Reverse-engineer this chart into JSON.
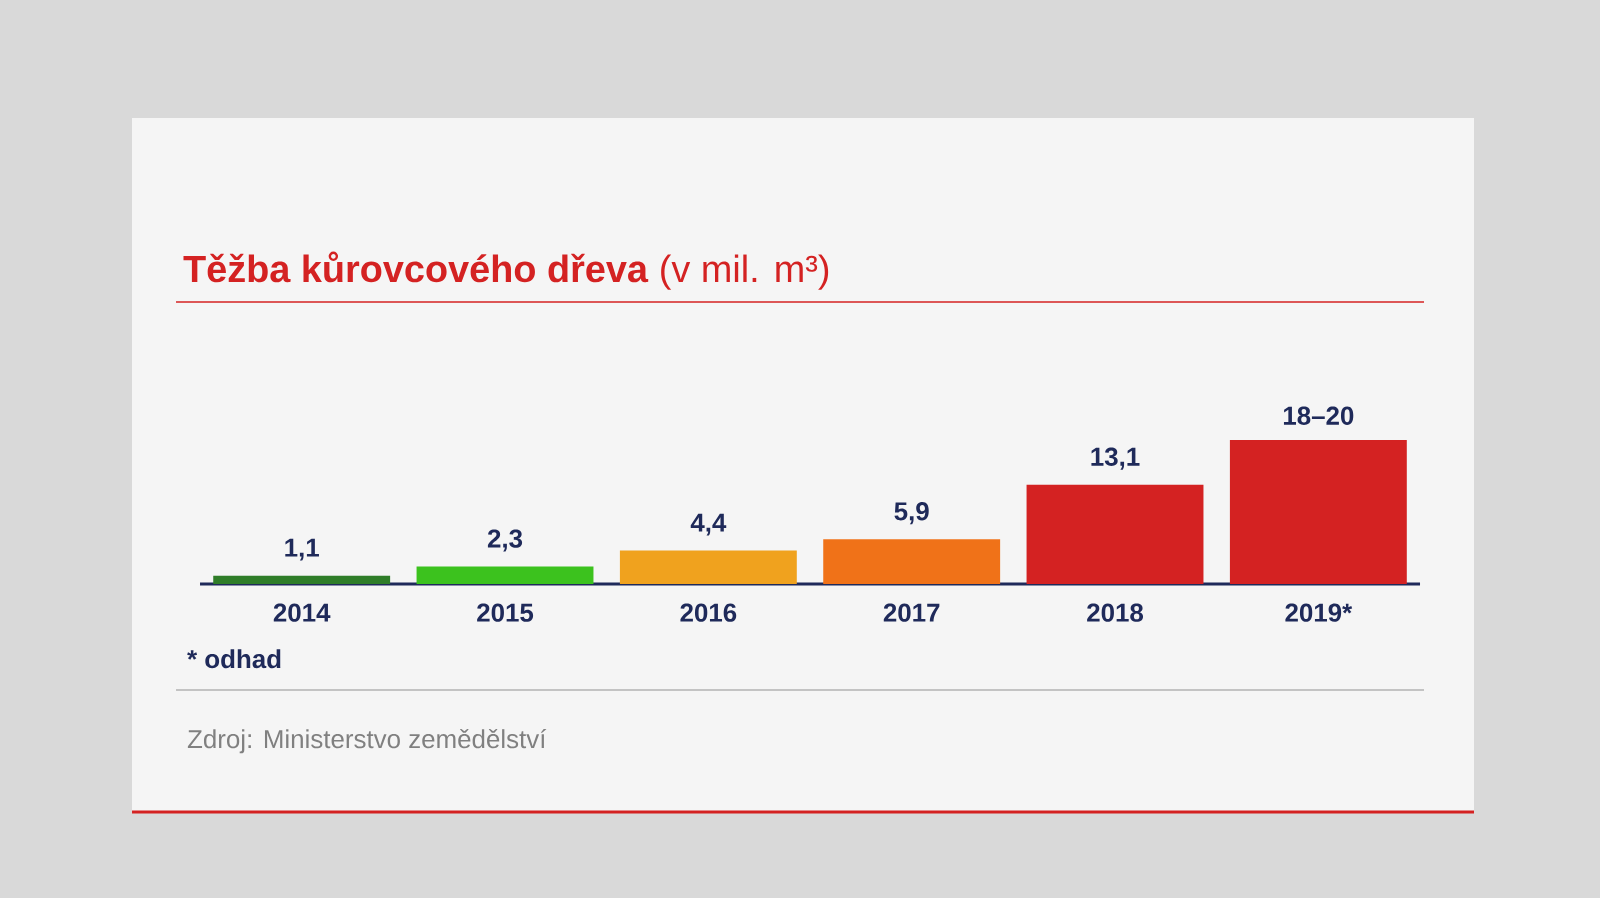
{
  "chart_data": {
    "type": "bar",
    "title": "**Těžba kůrovcového dřeva** (v mil. m³)",
    "categories": [
      "2014",
      "2015",
      "2016",
      "2017",
      "2018",
      "2019*"
    ],
    "values": [
      1.1,
      2.3,
      4.4,
      5.9,
      13.1,
      19
    ],
    "colors": [
      "#2f7d28",
      "#3cc21e",
      "#f0a21e",
      "#f07218",
      "#d42222",
      "#d42222"
    ],
    "value_labels": [
      "1,1",
      "2,3",
      "4,4",
      "5,9",
      "13,1",
      "18–20"
    ],
    "annotations": [
      "* odhad",
      "Zdroj: Ministerstvo zemědělství"
    ]
  }
}
